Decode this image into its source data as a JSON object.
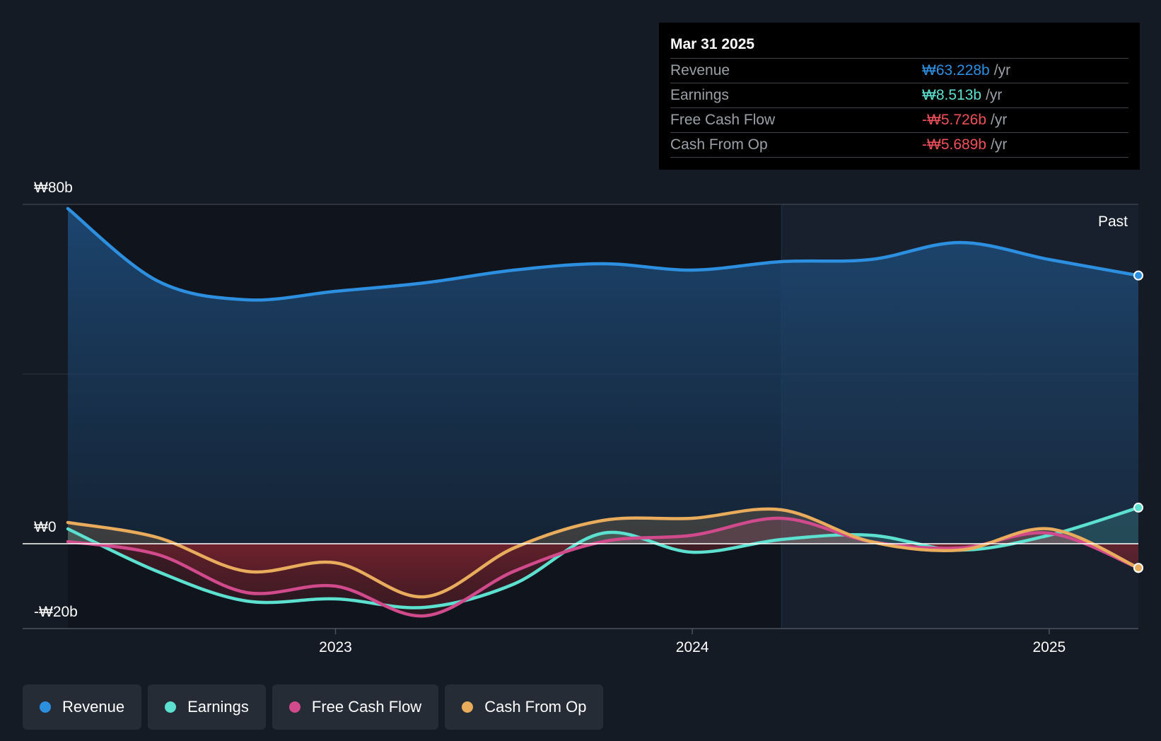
{
  "tooltip": {
    "date": "Mar 31 2025",
    "rows": [
      {
        "label": "Revenue",
        "value": "₩63.228b",
        "unit": "/yr",
        "color": "#2d8fe0"
      },
      {
        "label": "Earnings",
        "value": "₩8.513b",
        "unit": "/yr",
        "color": "#5ce0cf"
      },
      {
        "label": "Free Cash Flow",
        "value": "-₩5.726b",
        "unit": "/yr",
        "color": "#f0505a"
      },
      {
        "label": "Cash From Op",
        "value": "-₩5.689b",
        "unit": "/yr",
        "color": "#f0505a"
      }
    ]
  },
  "past_label": "Past",
  "legend": [
    {
      "label": "Revenue",
      "color": "#2d8fe0"
    },
    {
      "label": "Earnings",
      "color": "#5ce0cf"
    },
    {
      "label": "Free Cash Flow",
      "color": "#d04a8c"
    },
    {
      "label": "Cash From Op",
      "color": "#e8ac5c"
    }
  ],
  "chart_data": {
    "type": "line",
    "title": "",
    "xlabel": "",
    "ylabel": "",
    "ylim": [
      -20,
      80
    ],
    "y_unit": "₩b",
    "y_tick_labels": [
      {
        "value": 80,
        "label": "₩80b"
      },
      {
        "value": 0,
        "label": "₩0"
      },
      {
        "value": -20,
        "label": "-₩20b"
      }
    ],
    "x_tick_labels": [
      {
        "value": 2023.0,
        "label": "2023"
      },
      {
        "value": 2024.0,
        "label": "2024"
      },
      {
        "value": 2025.0,
        "label": "2025"
      }
    ],
    "xlim": [
      2022.27,
      2025.25
    ],
    "forecast_boundary": 2024.25,
    "grid": true,
    "legend_position": "bottom",
    "x": [
      2022.25,
      2022.5,
      2022.75,
      2023.0,
      2023.25,
      2023.5,
      2023.75,
      2024.0,
      2024.25,
      2024.5,
      2024.75,
      2025.0,
      2025.25
    ],
    "series": [
      {
        "name": "Revenue",
        "color": "#2d8fe0",
        "values": [
          79.0,
          62.0,
          57.5,
          59.5,
          61.5,
          64.5,
          66.0,
          64.5,
          66.5,
          67.0,
          71.0,
          67.0,
          63.228
        ]
      },
      {
        "name": "Earnings",
        "color": "#5ce0cf",
        "values": [
          3.5,
          -6.5,
          -13.5,
          -13.0,
          -15.0,
          -9.5,
          2.5,
          -2.0,
          1.0,
          2.0,
          -1.5,
          2.0,
          8.513
        ]
      },
      {
        "name": "Free Cash Flow",
        "color": "#d04a8c",
        "values": [
          0.5,
          -2.5,
          -11.5,
          -10.0,
          -17.0,
          -6.5,
          0.5,
          2.0,
          6.0,
          0.5,
          -1.0,
          2.5,
          -5.726
        ]
      },
      {
        "name": "Cash From Op",
        "color": "#e8ac5c",
        "values": [
          5.0,
          1.5,
          -6.5,
          -4.5,
          -12.5,
          -1.0,
          5.5,
          6.0,
          8.0,
          0.5,
          -1.5,
          3.5,
          -5.689
        ]
      }
    ]
  }
}
